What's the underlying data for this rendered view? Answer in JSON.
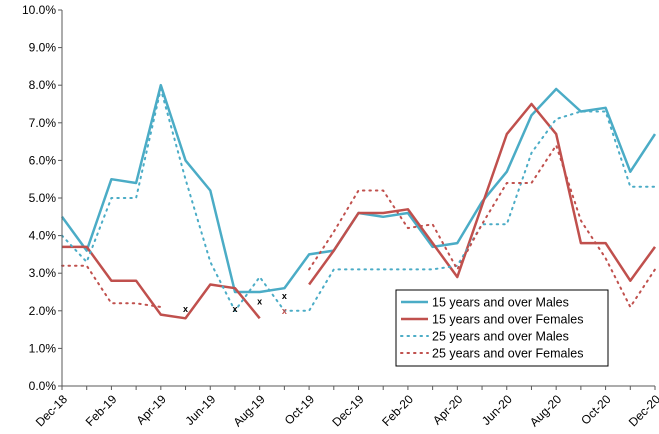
{
  "chart_data": {
    "type": "line",
    "title": "",
    "xlabel": "",
    "ylabel": "",
    "ylim": [
      0,
      10
    ],
    "y_ticks": [
      "0.0%",
      "1.0%",
      "2.0%",
      "3.0%",
      "4.0%",
      "5.0%",
      "6.0%",
      "7.0%",
      "8.0%",
      "9.0%",
      "10.0%"
    ],
    "categories": [
      "Dec-18",
      "Jan-19",
      "Feb-19",
      "Mar-19",
      "Apr-19",
      "May-19",
      "Jun-19",
      "Jul-19",
      "Aug-19",
      "Sep-19",
      "Oct-19",
      "Nov-19",
      "Dec-19",
      "Jan-20",
      "Feb-20",
      "Mar-20",
      "Apr-20",
      "May-20",
      "Jun-20",
      "Jul-20",
      "Aug-20",
      "Sep-20",
      "Oct-20",
      "Nov-20",
      "Dec-20"
    ],
    "x_tick_labels": [
      "Dec-18",
      "Feb-19",
      "Apr-19",
      "Jun-19",
      "Aug-19",
      "Oct-19",
      "Dec-19",
      "Feb-20",
      "Apr-20",
      "Jun-20",
      "Aug-20",
      "Oct-20",
      "Dec-20"
    ],
    "grid": false,
    "legend_position": "bottom-right",
    "series": [
      {
        "name": "15 years and over   Males",
        "color": "#4bacc6",
        "style": "solid",
        "values": [
          4.5,
          3.6,
          5.5,
          5.4,
          8.0,
          6.0,
          5.2,
          2.5,
          2.5,
          2.6,
          3.5,
          3.6,
          4.6,
          4.5,
          4.6,
          3.7,
          3.8,
          4.9,
          5.7,
          7.2,
          7.9,
          7.3,
          7.4,
          5.7,
          6.7
        ]
      },
      {
        "name": "15 years and over   Females",
        "color": "#c0504d",
        "style": "solid",
        "values": [
          3.7,
          3.7,
          2.8,
          2.8,
          1.9,
          1.8,
          2.7,
          2.6,
          1.8,
          null,
          2.7,
          3.6,
          4.6,
          4.6,
          4.7,
          3.8,
          2.9,
          4.8,
          6.7,
          7.5,
          6.7,
          3.8,
          3.8,
          2.8,
          3.7
        ]
      },
      {
        "name": "25 years and over   Males",
        "color": "#4bacc6",
        "style": "dotted",
        "values": [
          4.0,
          3.3,
          5.0,
          5.0,
          7.9,
          5.5,
          3.3,
          2.0,
          2.9,
          2.0,
          2.0,
          3.1,
          3.1,
          3.1,
          3.1,
          3.1,
          3.2,
          4.3,
          4.3,
          6.2,
          7.1,
          7.3,
          7.3,
          5.3,
          5.3
        ]
      },
      {
        "name": "25 years and over   Females",
        "color": "#c0504d",
        "style": "dotted",
        "values": [
          3.2,
          3.2,
          2.2,
          2.2,
          2.1,
          null,
          2.1,
          null,
          null,
          null,
          3.1,
          4.1,
          5.2,
          5.2,
          4.2,
          4.3,
          3.1,
          4.3,
          5.4,
          5.4,
          6.4,
          4.4,
          3.4,
          2.1,
          3.1
        ]
      }
    ],
    "annotations": [
      {
        "text": "x",
        "category": "May-19",
        "value": 2.05,
        "color": "#000000"
      },
      {
        "text": "x",
        "category": "Jul-19",
        "value": 2.05,
        "color": "#000000"
      },
      {
        "text": "x",
        "category": "Aug-19",
        "value": 2.25,
        "color": "#000000"
      },
      {
        "text": "x",
        "category": "Sep-19",
        "value": 2.4,
        "color": "#000000"
      },
      {
        "text": "x",
        "category": "Sep-19",
        "value": 2.0,
        "color": "#c0504d"
      }
    ]
  }
}
